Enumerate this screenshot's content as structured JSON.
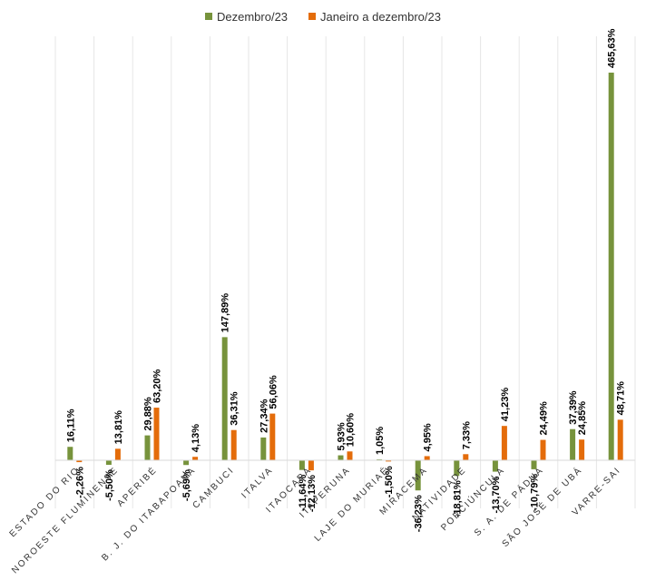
{
  "chart_data": {
    "type": "bar",
    "title": "",
    "xlabel": "",
    "ylabel": "",
    "grid": "vertical",
    "legend_position": "top",
    "categories": [
      "ESTADO DO RIO",
      "NOROESTE FLUMINENSE",
      "APERIBÉ",
      "B. J. DO ITABAPOANA",
      "CAMBUCI",
      "ITALVA",
      "ITAOCARA",
      "ITAPERUNA",
      "LAJE DO MURIAÉ",
      "MIRACEMA",
      "NATIVIDADE",
      "PORCIÚNCULA",
      "S. A. DE PÁDUA",
      "SÃO JOSÉ DE UBÁ",
      "VARRE-SAI"
    ],
    "series": [
      {
        "name": "Dezembro/23",
        "color": "#77933C",
        "values": [
          16.11,
          -5.5,
          29.88,
          -5.69,
          147.89,
          27.34,
          -11.64,
          5.93,
          1.05,
          -36.23,
          -18.81,
          -13.7,
          -10.79,
          37.39,
          465.63
        ],
        "labels": [
          "16,11%",
          "-5,50%",
          "29,88%",
          "-5,69%",
          "147,89%",
          "27,34%",
          "-11,64%",
          "5,93%",
          "1,05%",
          "-36,23%",
          "-18,81%",
          "-13,70%",
          "-10,79%",
          "37,39%",
          "465,63%"
        ]
      },
      {
        "name": "Janeiro a dezembro/23",
        "color": "#E46C0A",
        "values": [
          -2.26,
          13.81,
          63.2,
          4.13,
          36.31,
          56.06,
          -12.13,
          10.6,
          -1.5,
          4.95,
          7.33,
          41.23,
          24.49,
          24.85,
          48.71
        ],
        "labels": [
          "-2,26%",
          "13,81%",
          "63,20%",
          "4,13%",
          "36,31%",
          "56,06%",
          "-12,13%",
          "10,60%",
          "-1,50%",
          "4,95%",
          "7,33%",
          "41,23%",
          "24,49%",
          "24,85%",
          "48,71%"
        ]
      }
    ]
  }
}
